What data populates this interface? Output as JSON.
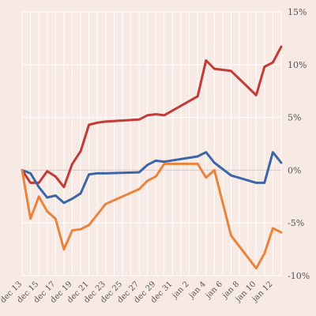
{
  "chart_data": {
    "type": "line",
    "title": "",
    "xlabel": "",
    "ylabel": "",
    "ylim": [
      -10,
      15
    ],
    "y_ticks": [
      {
        "value": 15,
        "label": "15%"
      },
      {
        "value": 10,
        "label": "10%"
      },
      {
        "value": 5,
        "label": "5%"
      },
      {
        "value": 0,
        "label": "0%"
      },
      {
        "value": -5,
        "label": "-5%"
      },
      {
        "value": -10,
        "label": "-10%"
      }
    ],
    "x_tick_labels": [
      "dec 13",
      "dec 15",
      "dec 17",
      "dec 19",
      "dec 21",
      "dec 23",
      "dec 25",
      "dec 27",
      "dec 29",
      "dec 31",
      "jan 2",
      "jan 4",
      "jan 6",
      "jan 8",
      "jan 10",
      "jan 12"
    ],
    "grid": true,
    "legend": "none",
    "x": [
      "dec 13",
      "dec 14",
      "dec 15",
      "dec 16",
      "dec 17",
      "dec 18",
      "dec 19",
      "dec 20",
      "dec 21",
      "dec 22",
      "dec 23",
      "dec 27",
      "dec 28",
      "dec 29",
      "dec 30",
      "jan 3",
      "jan 4",
      "jan 5",
      "jan 7",
      "jan 10",
      "jan 11",
      "jan 12",
      "jan 13"
    ],
    "series": [
      {
        "color": "#c23b37",
        "values": [
          0,
          -1.2,
          -1.2,
          -0.1,
          -0.6,
          -1.6,
          0.6,
          1.8,
          4.3,
          4.5,
          4.6,
          4.8,
          5.2,
          5.3,
          5.2,
          7.0,
          10.4,
          9.6,
          9.4,
          7.1,
          9.8,
          10.2,
          11.7
        ]
      },
      {
        "color": "#3d66a8",
        "values": [
          0,
          -0.3,
          -1.6,
          -2.6,
          -2.4,
          -3.1,
          -2.7,
          -2.2,
          -0.4,
          -0.3,
          -0.3,
          -0.2,
          0.5,
          0.9,
          0.8,
          1.3,
          1.7,
          0.7,
          -0.5,
          -1.2,
          -1.2,
          1.7,
          0.7
        ]
      },
      {
        "color": "#e8843c",
        "values": [
          0,
          -4.6,
          -2.5,
          -3.9,
          -4.6,
          -7.5,
          -5.7,
          -5.6,
          -5.2,
          -4.2,
          -3.2,
          -1.8,
          -1.0,
          -0.6,
          0.6,
          0.6,
          -0.7,
          0.0,
          -6.2,
          -9.3,
          -7.9,
          -5.5,
          -5.9
        ]
      }
    ]
  }
}
